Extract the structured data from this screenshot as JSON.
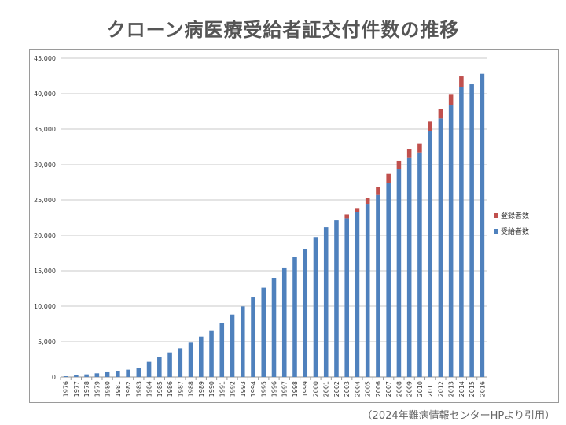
{
  "chart_data": {
    "type": "bar",
    "stacked": true,
    "title": "クローン病医療受給者証交付件数の推移",
    "xlabel": "",
    "ylabel": "",
    "ylim": [
      0,
      45000
    ],
    "yticks": [
      "0",
      "5,000",
      "10,000",
      "15,000",
      "20,000",
      "25,000",
      "30,000",
      "35,000",
      "40,000",
      "45,000"
    ],
    "grid": true,
    "legend_position": "right",
    "categories": [
      "1976",
      "1977",
      "1978",
      "1979",
      "1980",
      "1981",
      "1982",
      "1983",
      "1984",
      "1985",
      "1986",
      "1987",
      "1988",
      "1989",
      "1990",
      "1991",
      "1992",
      "1993",
      "1994",
      "1995",
      "1996",
      "1997",
      "1998",
      "1999",
      "2000",
      "2001",
      "2002",
      "2003",
      "2004",
      "2005",
      "2006",
      "2007",
      "2008",
      "2009",
      "2010",
      "2011",
      "2012",
      "2013",
      "2014",
      "2015",
      "2016"
    ],
    "series": [
      {
        "name": "受給者数",
        "color": "#4f81bd",
        "values": [
          110,
          260,
          370,
          520,
          670,
          850,
          1040,
          1260,
          2150,
          2780,
          3480,
          4070,
          4850,
          5700,
          6590,
          7630,
          8810,
          9960,
          11330,
          12600,
          14000,
          15450,
          17000,
          18100,
          19750,
          21100,
          22100,
          22400,
          23260,
          24440,
          25700,
          27410,
          29330,
          30920,
          31700,
          34780,
          36520,
          38330,
          40920,
          41330,
          42810
        ]
      },
      {
        "name": "登録者数",
        "color": "#c0504d",
        "values": [
          0,
          0,
          0,
          0,
          0,
          0,
          0,
          0,
          0,
          0,
          0,
          0,
          0,
          0,
          0,
          0,
          0,
          0,
          0,
          0,
          0,
          0,
          0,
          0,
          0,
          0,
          0,
          550,
          590,
          820,
          1110,
          1290,
          1230,
          1300,
          1230,
          1290,
          1330,
          1520,
          1520,
          0,
          0
        ]
      }
    ]
  },
  "footnote": "（2024年難病情報センターHPより引用）"
}
